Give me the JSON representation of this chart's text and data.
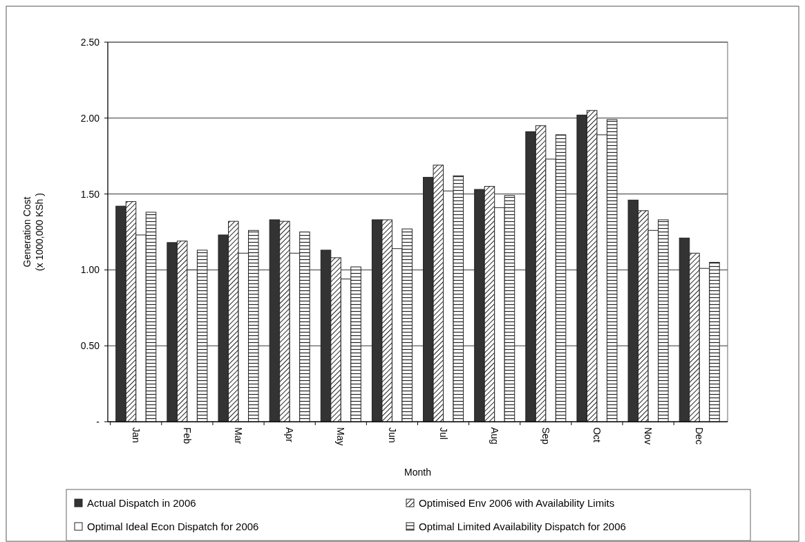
{
  "chart_data": {
    "type": "bar",
    "xlabel": "Month",
    "ylabel": "Generation Cost\n(x 1000,000 KSh )",
    "categories": [
      "Jan",
      "Feb",
      "Mar",
      "Apr",
      "May",
      "Jun",
      "Jul",
      "Aug",
      "Sep",
      "Oct",
      "Nov",
      "Dec"
    ],
    "series": [
      {
        "name": "Actual Dispatch in 2006",
        "color": "#333333",
        "values": [
          1.42,
          1.18,
          1.23,
          1.33,
          1.13,
          1.33,
          1.61,
          1.53,
          1.91,
          2.02,
          1.46,
          1.21
        ]
      },
      {
        "name": "Optimised Env 2006 with Availability Limits",
        "color": "#222222",
        "values": [
          1.45,
          1.19,
          1.32,
          1.32,
          1.08,
          1.33,
          1.69,
          1.55,
          1.95,
          2.05,
          1.39,
          1.11
        ]
      },
      {
        "name": "Optimal Ideal Econ Dispatch for 2006",
        "color": "#ffffff",
        "values": [
          1.23,
          1.0,
          1.11,
          1.11,
          0.94,
          1.14,
          1.52,
          1.41,
          1.73,
          1.89,
          1.26,
          1.01
        ]
      },
      {
        "name": "Optimal Limited Availability Dispatch for 2006",
        "color": "#222222",
        "values": [
          1.38,
          1.13,
          1.26,
          1.25,
          1.02,
          1.27,
          1.62,
          1.49,
          1.89,
          1.99,
          1.33,
          1.05
        ]
      }
    ],
    "ylim": [
      0,
      2.5
    ],
    "yticks": [
      {
        "value": 0,
        "label": "-"
      },
      {
        "value": 0.5,
        "label": "0.50"
      },
      {
        "value": 1,
        "label": "1.00"
      },
      {
        "value": 1.5,
        "label": "1.50"
      },
      {
        "value": 2,
        "label": "2.00"
      },
      {
        "value": 2.5,
        "label": "2.50"
      }
    ],
    "grid": "y",
    "legend": "bottom"
  }
}
